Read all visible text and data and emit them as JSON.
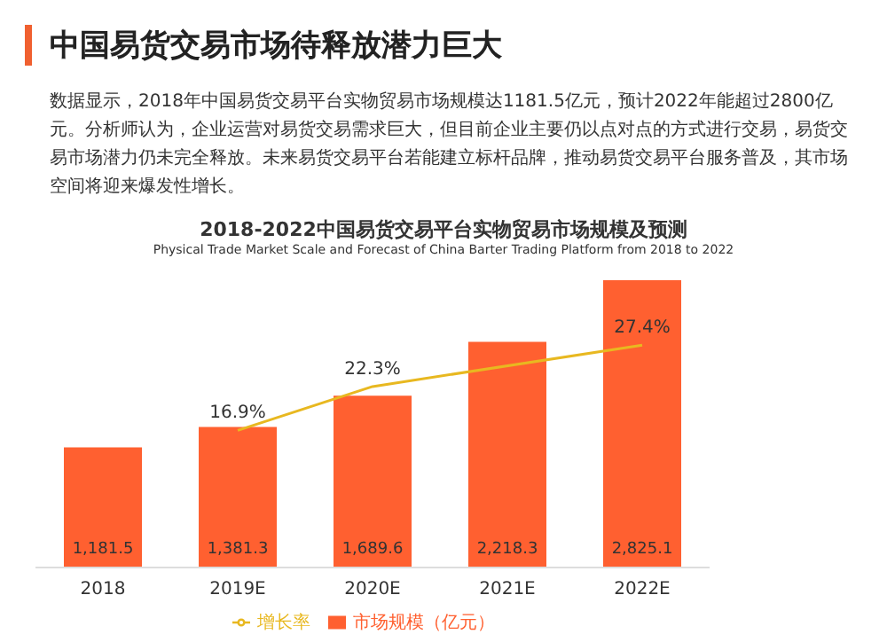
{
  "chart_data": {
    "type": "bar",
    "title": "2018-2022中国易货交易平台实物贸易市场规模及预测",
    "subtitle": "Physical Trade Market Scale and Forecast of China Barter Trading Platform from 2018 to 2022",
    "annotations": [
      "中国易货交易市场待释放潜力巨大",
      "数据显示，2018年中国易货交易平台实物贸易市场规模达1181.5亿元，预计2022年能超过2800亿元。分析师认为，企业运营对易货交易需求巨大，但目前企业主要仍以点对点的方式进行交易，易货交易市场潜力仍未完全释放。未来易货交易平台若能建立标杆品牌，推动易货交易平台服务普及，其市场空间将迎来爆发性增长。"
    ],
    "categories": [
      "2018",
      "2019E",
      "2020E",
      "2021E",
      "2022E"
    ],
    "series": [
      {
        "name": "市场规模（亿元）",
        "color": "#ff6030",
        "values": [
          1181.5,
          1381.3,
          1689.6,
          2218.3,
          2825.1
        ],
        "value_labels": [
          "1,181.5",
          "1,381.3",
          "1,689.6",
          "2,218.3",
          "2,825.1"
        ]
      },
      {
        "name": "增长率",
        "type": "line",
        "axis": "y2",
        "color": "#e8b820",
        "values": [
          null,
          16.9,
          22.3,
          null,
          27.4
        ],
        "value_labels": [
          null,
          "16.9%",
          "22.3%",
          null,
          "27.4%"
        ]
      }
    ],
    "legend": "bottom",
    "marker": "none"
  }
}
